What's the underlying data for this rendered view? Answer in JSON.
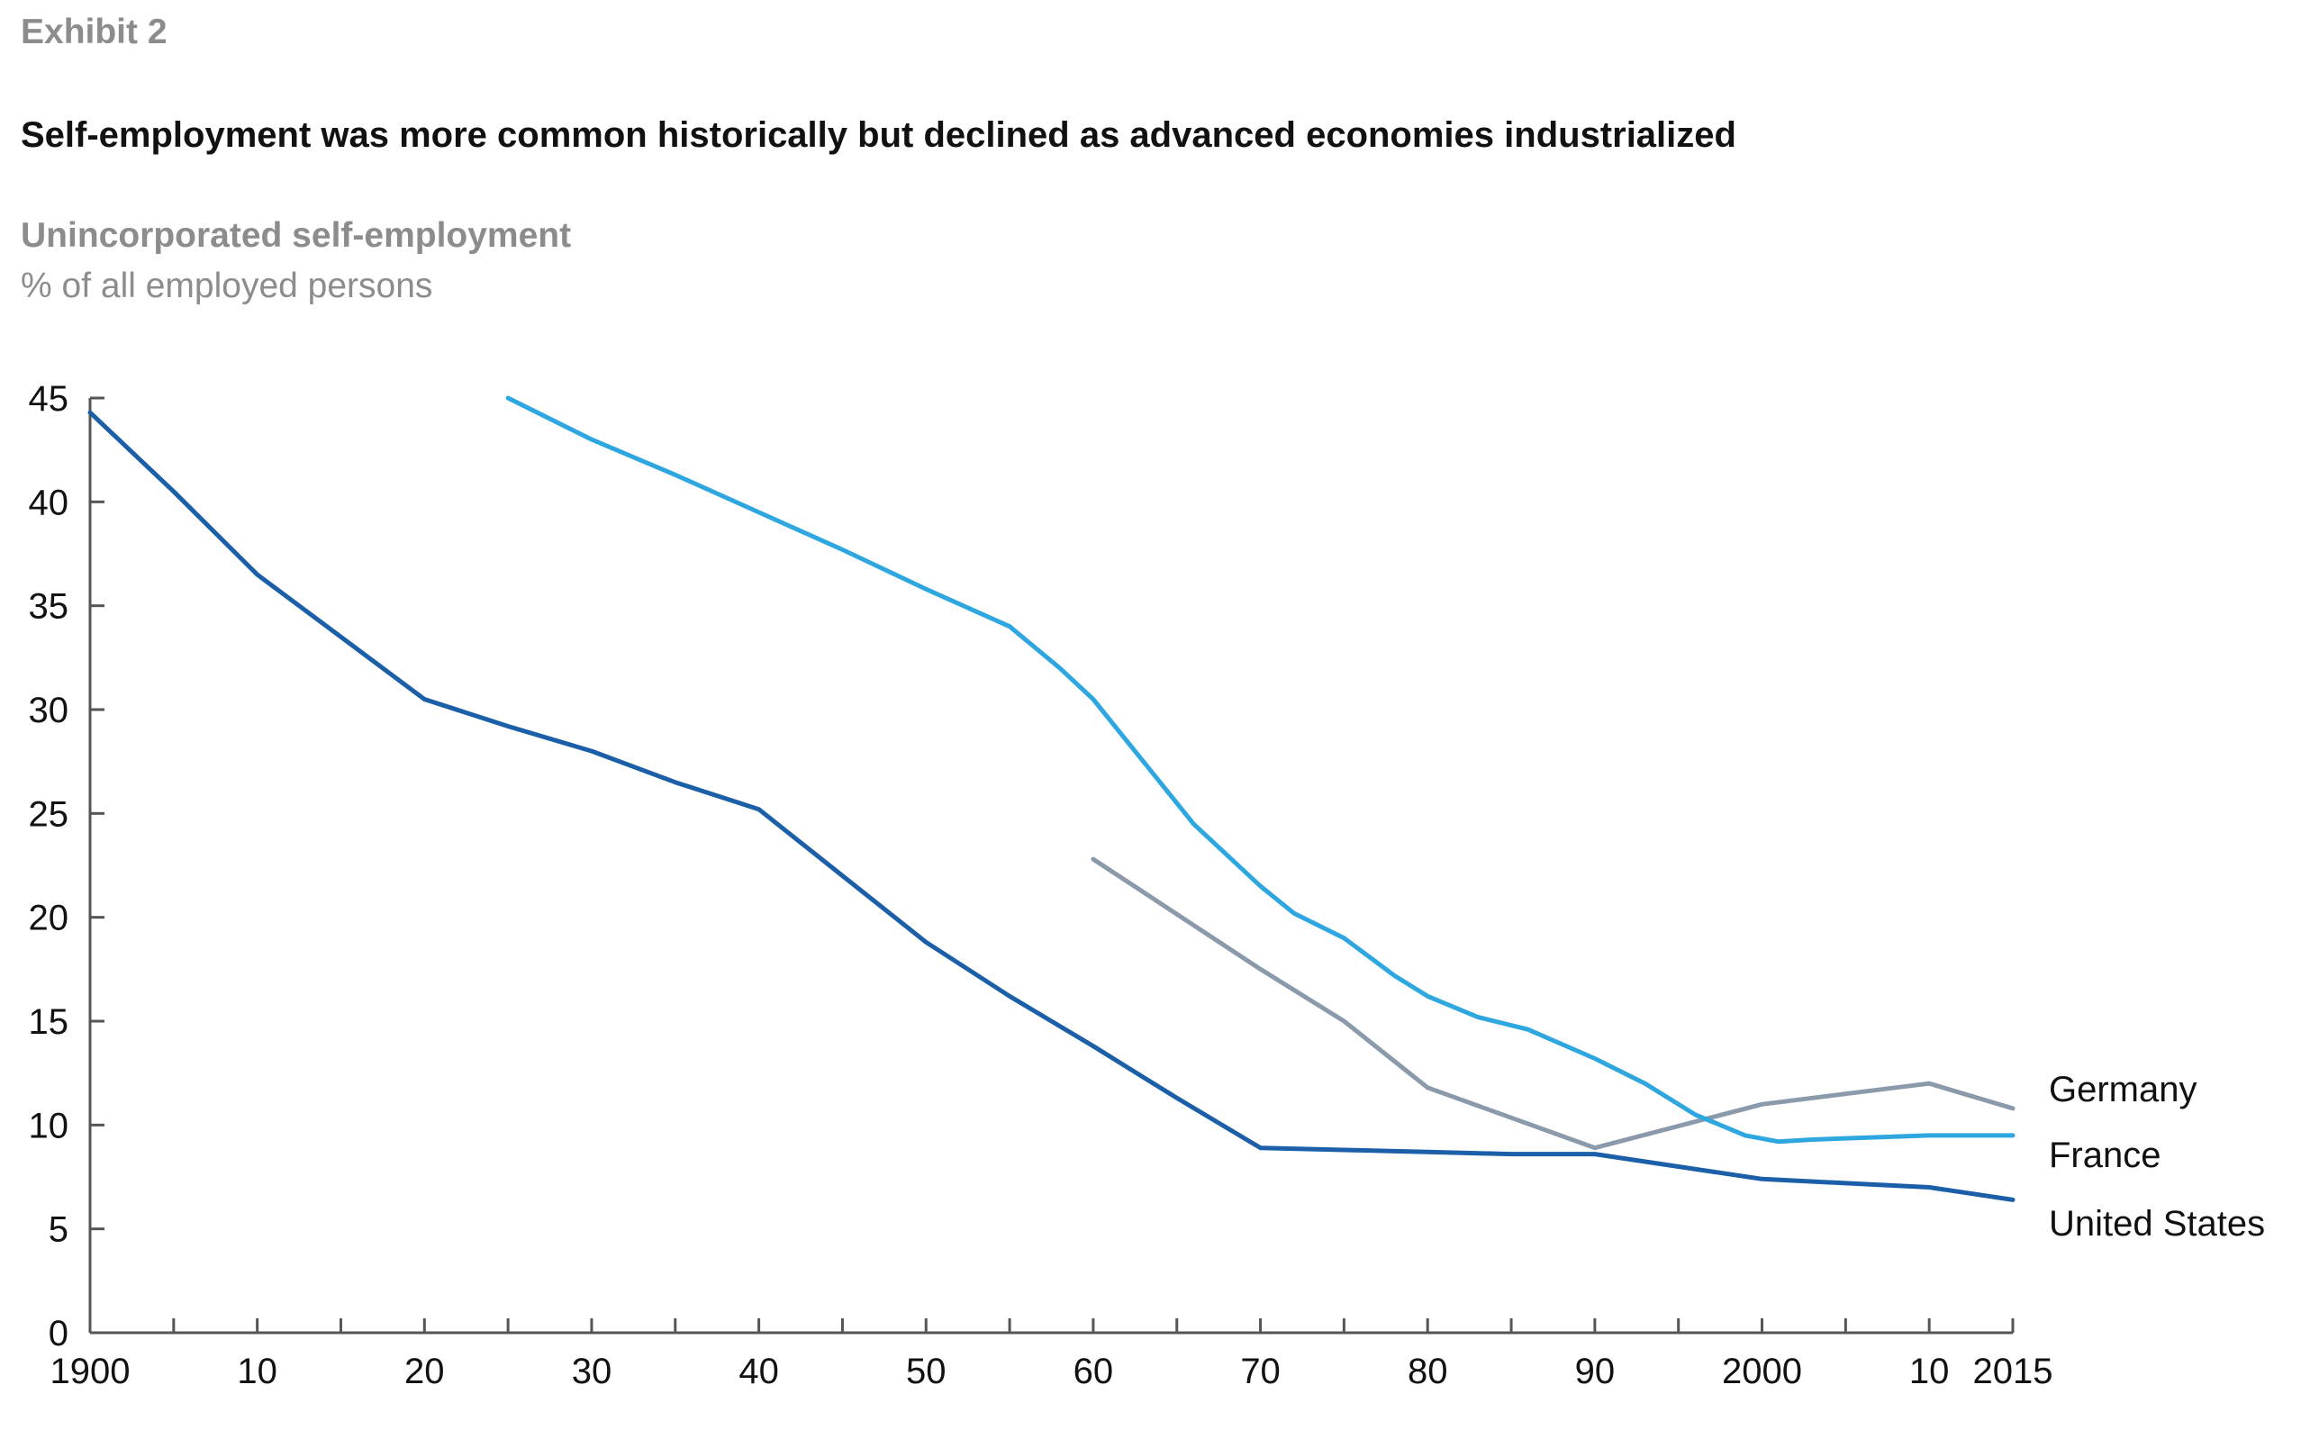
{
  "header": {
    "exhibit": "Exhibit 2",
    "title": "Self-employment was more common historically but declined as advanced economies industrialized",
    "subtitle": "Unincorporated self-employment",
    "unit": "% of all employed persons"
  },
  "chart_data": {
    "type": "line",
    "title": "Self-employment was more common historically but declined as advanced economies industrialized",
    "ylabel": "Unincorporated self-employment % of all employed persons",
    "xlabel": "",
    "xlim": [
      1900,
      2015
    ],
    "ylim": [
      0,
      45
    ],
    "grid": false,
    "y_ticks": [
      0,
      5,
      10,
      15,
      20,
      25,
      30,
      35,
      40,
      45
    ],
    "x_tick_values": [
      1900,
      1910,
      1920,
      1930,
      1940,
      1950,
      1960,
      1970,
      1980,
      1990,
      2000,
      2010,
      2015
    ],
    "x_tick_labels": [
      "1900",
      "10",
      "20",
      "30",
      "40",
      "50",
      "60",
      "70",
      "80",
      "90",
      "2000",
      "10",
      "2015"
    ],
    "x_minor_ticks": [
      1905,
      1915,
      1925,
      1935,
      1945,
      1955,
      1965,
      1975,
      1985,
      1995,
      2005
    ],
    "legend_placement": "inline labels at right end of lines",
    "series": [
      {
        "name": "Germany",
        "color": "#8a9aab",
        "x": [
          1960,
          1970,
          1975,
          1980,
          1990,
          2000,
          2005,
          2010,
          2015
        ],
        "y": [
          22.8,
          17.5,
          15.0,
          11.8,
          8.9,
          11.0,
          11.5,
          12.0,
          10.8
        ]
      },
      {
        "name": "France",
        "color": "#2ea7e0",
        "x": [
          1925,
          1930,
          1935,
          1940,
          1945,
          1950,
          1955,
          1958,
          1960,
          1963,
          1966,
          1970,
          1972,
          1975,
          1978,
          1980,
          1983,
          1986,
          1990,
          1993,
          1996,
          1999,
          2001,
          2003,
          2010,
          2015
        ],
        "y": [
          45.0,
          43.0,
          41.3,
          39.5,
          37.7,
          35.8,
          34.0,
          32.0,
          30.5,
          27.5,
          24.5,
          21.5,
          20.2,
          19.0,
          17.2,
          16.2,
          15.2,
          14.6,
          13.2,
          12.0,
          10.5,
          9.5,
          9.2,
          9.3,
          9.5,
          9.5
        ]
      },
      {
        "name": "United States",
        "color": "#1b5fa8",
        "x": [
          1900,
          1905,
          1910,
          1915,
          1920,
          1925,
          1930,
          1935,
          1940,
          1945,
          1950,
          1955,
          1960,
          1965,
          1970,
          1975,
          1980,
          1985,
          1990,
          1995,
          2000,
          2005,
          2010,
          2015
        ],
        "y": [
          44.3,
          40.5,
          36.5,
          33.5,
          30.5,
          29.2,
          28.0,
          26.5,
          25.2,
          22.0,
          18.8,
          16.2,
          13.8,
          11.3,
          8.9,
          8.8,
          8.7,
          8.6,
          8.6,
          8.0,
          7.4,
          7.2,
          7.0,
          6.4
        ]
      }
    ]
  }
}
